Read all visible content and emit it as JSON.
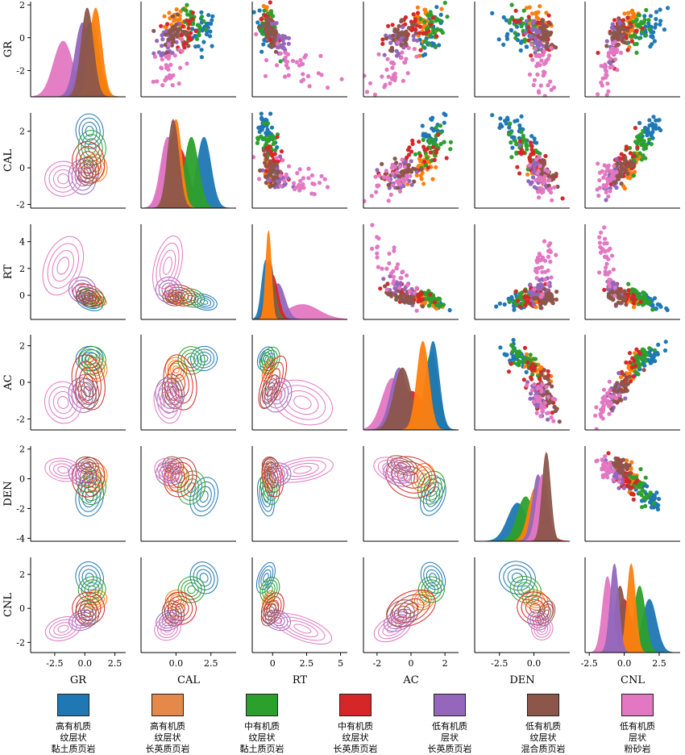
{
  "chart_data": {
    "type": "scatter",
    "subtype": "pairplot",
    "variables": [
      "GR",
      "CAL",
      "RT",
      "AC",
      "DEN",
      "CNL"
    ],
    "diagonal": "kde",
    "upper_triangle": "scatter",
    "lower_triangle": "kde-contour",
    "axes": {
      "GR": {
        "ylim": [
          -3.6,
          2.2
        ],
        "yticks": [
          "-2",
          "0",
          "2"
        ],
        "xlim": [
          -4.5,
          3.4
        ],
        "xticks": [
          "-2.5",
          "0.0",
          "2.5"
        ]
      },
      "CAL": {
        "ylim": [
          -2.2,
          3.0
        ],
        "yticks": [
          "-2",
          "0",
          "2"
        ],
        "xlim": [
          -2.5,
          4.3
        ],
        "xticks": [
          "0.0",
          "2.5"
        ]
      },
      "RT": {
        "ylim": [
          -1.8,
          5.3
        ],
        "yticks": [
          "0",
          "2",
          "4"
        ],
        "xlim": [
          -1.5,
          5.5
        ],
        "xticks": [
          "0",
          "2.5",
          "5"
        ]
      },
      "AC": {
        "ylim": [
          -2.6,
          2.6
        ],
        "yticks": [
          "-2",
          "0",
          "2"
        ],
        "xlim": [
          -2.8,
          2.8
        ],
        "xticks": [
          "-2",
          "0",
          "2"
        ]
      },
      "DEN": {
        "ylim": [
          -4.2,
          2.2
        ],
        "yticks": [
          "-4",
          "-2",
          "0",
          "2"
        ],
        "xlim": [
          -4.3,
          2.6
        ],
        "xticks": [
          "-2.5",
          "0.0"
        ]
      },
      "CNL": {
        "ylim": [
          -2.6,
          3.0
        ],
        "yticks": [
          "-2",
          "0",
          "2"
        ],
        "xlim": [
          -2.8,
          4.0
        ],
        "xticks": [
          "-2.5",
          "0.0",
          "2.5"
        ]
      }
    },
    "series": [
      {
        "name": "高有机质\n纹层状\n黏土质页岩",
        "color": "#1f77b4",
        "mean": {
          "GR": 0.4,
          "CAL": 2.0,
          "RT": -0.5,
          "AC": 1.3,
          "DEN": -1.2,
          "CNL": 1.8
        },
        "std": {
          "GR": 0.6,
          "CAL": 0.5,
          "RT": 0.3,
          "AC": 0.35,
          "DEN": 0.7,
          "CNL": 0.5
        }
      },
      {
        "name": "高有机质\n纹层状\n长英质页岩",
        "color": "#ff7f0e",
        "mean": {
          "GR": 0.9,
          "CAL": 0.0,
          "RT": -0.3,
          "AC": 0.7,
          "DEN": 0.1,
          "CNL": 0.5
        },
        "std": {
          "GR": 0.5,
          "CAL": 0.4,
          "RT": 0.2,
          "AC": 0.35,
          "DEN": 0.5,
          "CNL": 0.3
        }
      },
      {
        "name": "中有机质\n纹层状\n黏土质页岩",
        "color": "#2ca02c",
        "mean": {
          "GR": 0.6,
          "CAL": 1.1,
          "RT": -0.2,
          "AC": 1.2,
          "DEN": -0.6,
          "CNL": 1.1
        },
        "std": {
          "GR": 0.6,
          "CAL": 0.5,
          "RT": 0.35,
          "AC": 0.4,
          "DEN": 0.6,
          "CNL": 0.4
        }
      },
      {
        "name": "中有机质\n纹层状\n长英质页岩",
        "color": "#d62728",
        "mean": {
          "GR": 0.3,
          "CAL": 0.3,
          "RT": 0.0,
          "AC": 0.0,
          "DEN": 0.1,
          "CNL": 0.0
        },
        "std": {
          "GR": 0.7,
          "CAL": 0.6,
          "RT": 0.4,
          "AC": 0.8,
          "DEN": 0.7,
          "CNL": 0.5
        }
      },
      {
        "name": "低有机质\n层状\n长英质页岩",
        "color": "#9467bd",
        "mean": {
          "GR": -0.2,
          "CAL": -0.5,
          "RT": 0.4,
          "AC": -0.7,
          "DEN": 0.3,
          "CNL": -0.7
        },
        "std": {
          "GR": 0.6,
          "CAL": 0.5,
          "RT": 0.5,
          "AC": 0.5,
          "DEN": 0.4,
          "CNL": 0.3
        }
      },
      {
        "name": "低有机质\n纹层状\n混合质页岩",
        "color": "#8c564b",
        "mean": {
          "GR": 0.2,
          "CAL": -0.2,
          "RT": -0.2,
          "AC": -0.5,
          "DEN": 0.9,
          "CNL": -0.3
        },
        "std": {
          "GR": 0.5,
          "CAL": 0.4,
          "RT": 0.3,
          "AC": 0.5,
          "DEN": 0.3,
          "CNL": 0.4
        }
      },
      {
        "name": "低有机质\n层状\n粉砂岩",
        "color": "#e377c2",
        "mean": {
          "GR": -1.8,
          "CAL": -0.6,
          "RT": 2.2,
          "AC": -1.1,
          "DEN": 0.6,
          "CNL": -1.2
        },
        "std": {
          "GR": 0.8,
          "CAL": 0.5,
          "RT": 1.2,
          "AC": 0.6,
          "DEN": 0.4,
          "CNL": 0.35
        }
      }
    ],
    "legend_position": "bottom"
  }
}
